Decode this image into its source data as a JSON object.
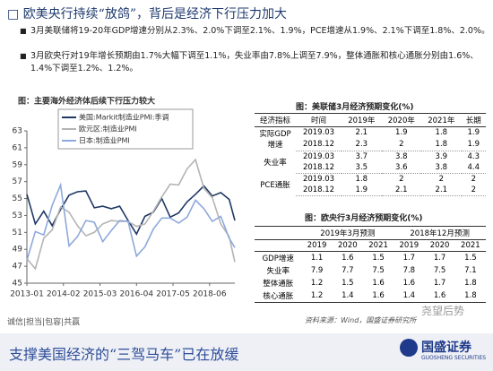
{
  "header": {
    "title": "欧美央行持续“放鸽”，背后是经济下行压力加大"
  },
  "bullets": [
    "3月美联储将19-20年GDP增速分别从2.3%、2.0%下调至2.1%、1.9%，PCE增速从1.9%、2.1%下调至1.8%、2.0%。",
    "3月欧央行对19年增长预期由1.7%大幅下调至1.1%，失业率由7.8%上调至7.9%，整体通胀和核心通胀分别由1.6%、1.4%下调至1.2%、1.2%。"
  ],
  "chart_data": {
    "type": "line",
    "title": "图：主要海外经济体后续下行压力较大",
    "x": [
      "2013-01",
      "2013-04",
      "2013-07",
      "2013-10",
      "2014-01",
      "2014-04",
      "2014-07",
      "2014-10",
      "2015-01",
      "2015-04",
      "2015-07",
      "2015-10",
      "2016-01",
      "2016-04",
      "2016-07",
      "2016-10",
      "2017-01",
      "2017-04",
      "2017-07",
      "2017-10",
      "2018-01",
      "2018-04",
      "2018-07",
      "2018-10",
      "2019-01",
      "2019-03"
    ],
    "xlim": [
      "2013-01",
      "2019-03"
    ],
    "xticks": [
      "2013-01",
      "2014-02",
      "2015-03",
      "2016-04",
      "2017-05",
      "2018-06"
    ],
    "ylim": [
      45,
      63
    ],
    "yticks": [
      45,
      47,
      49,
      51,
      53,
      55,
      57,
      59,
      61,
      63
    ],
    "legend": "top-left",
    "series": [
      {
        "name": "美国:Markit制造业PMI:季调",
        "color": "#1f3864",
        "values": [
          55.5,
          52,
          53.5,
          51.8,
          53.7,
          55.4,
          55.8,
          55.9,
          53.9,
          54.1,
          53.8,
          54.1,
          52.4,
          50.8,
          52.9,
          53.4,
          55,
          52.8,
          53.3,
          54.6,
          55.5,
          56.5,
          55.3,
          55.7,
          54.9,
          52.4
        ]
      },
      {
        "name": "欧元区:制造业PMI",
        "color": "#b4b4b4",
        "values": [
          47.9,
          46.7,
          50.3,
          51.3,
          54,
          53.4,
          51.8,
          50.6,
          51,
          52,
          52.4,
          52.3,
          52.3,
          51.7,
          52,
          53.5,
          55.2,
          56.7,
          56.6,
          58.5,
          59.6,
          56.2,
          55.1,
          52,
          50.5,
          47.5
        ]
      },
      {
        "name": "日本:制造业PMI",
        "color": "#8ea9db",
        "values": [
          47.7,
          51.1,
          50.7,
          54.2,
          56.6,
          49.4,
          50.5,
          52.4,
          52.2,
          49.9,
          51.2,
          52.4,
          52.3,
          48.2,
          49.3,
          51.4,
          52.7,
          52.7,
          52.1,
          52.8,
          54.8,
          53.8,
          52.3,
          52.9,
          50.3,
          49.2
        ]
      }
    ]
  },
  "fed_table": {
    "title": "图：美联储3月经济预期变化(%)",
    "header": [
      "经济指标",
      "时间",
      "2019年",
      "2020年",
      "2021年",
      "长期"
    ],
    "groups": [
      {
        "name": "实际GDP增速",
        "rows": [
          [
            "2019.03",
            2.1,
            1.9,
            1.8,
            1.9
          ],
          [
            "2018.12",
            2.3,
            2,
            1.8,
            1.9
          ]
        ]
      },
      {
        "name": "失业率",
        "rows": [
          [
            "2019.03",
            3.7,
            3.8,
            3.9,
            4.3
          ],
          [
            "2018.12",
            3.5,
            3.6,
            3.8,
            4.4
          ]
        ]
      },
      {
        "name": "PCE通胀",
        "rows": [
          [
            "2019.03",
            1.8,
            2,
            2,
            2
          ],
          [
            "2018.12",
            1.9,
            2.1,
            2.1,
            2
          ]
        ]
      }
    ]
  },
  "ecb_table": {
    "title": "图：欧央行3月经济预期变化(%)",
    "groups": [
      "2019年3月预测",
      "2018年12月预测"
    ],
    "years": [
      "2019",
      "2020",
      "2021",
      "2019",
      "2020",
      "2021"
    ],
    "rows": [
      {
        "name": "GDP增速",
        "values": [
          1.1,
          1.6,
          1.5,
          1.7,
          1.7,
          1.5
        ]
      },
      {
        "name": "失业率",
        "values": [
          7.9,
          7.7,
          7.5,
          7.8,
          7.5,
          7.1
        ]
      },
      {
        "name": "整体通胀",
        "values": [
          1.2,
          1.5,
          1.6,
          1.6,
          1.7,
          1.8
        ]
      },
      {
        "name": "核心通胀",
        "values": [
          1.2,
          1.4,
          1.6,
          1.4,
          1.6,
          1.8
        ]
      }
    ]
  },
  "footer": {
    "motto": "诚信|担当|包容|共赢",
    "source": "资料来源：Wind，国盛证券研究所",
    "watermark": "尧望后势",
    "banner": "支撑美国经济的“三驾马车”已在放缓",
    "logo": "国盛证券",
    "logo_en": "GUOSHENG SECURITIES"
  }
}
